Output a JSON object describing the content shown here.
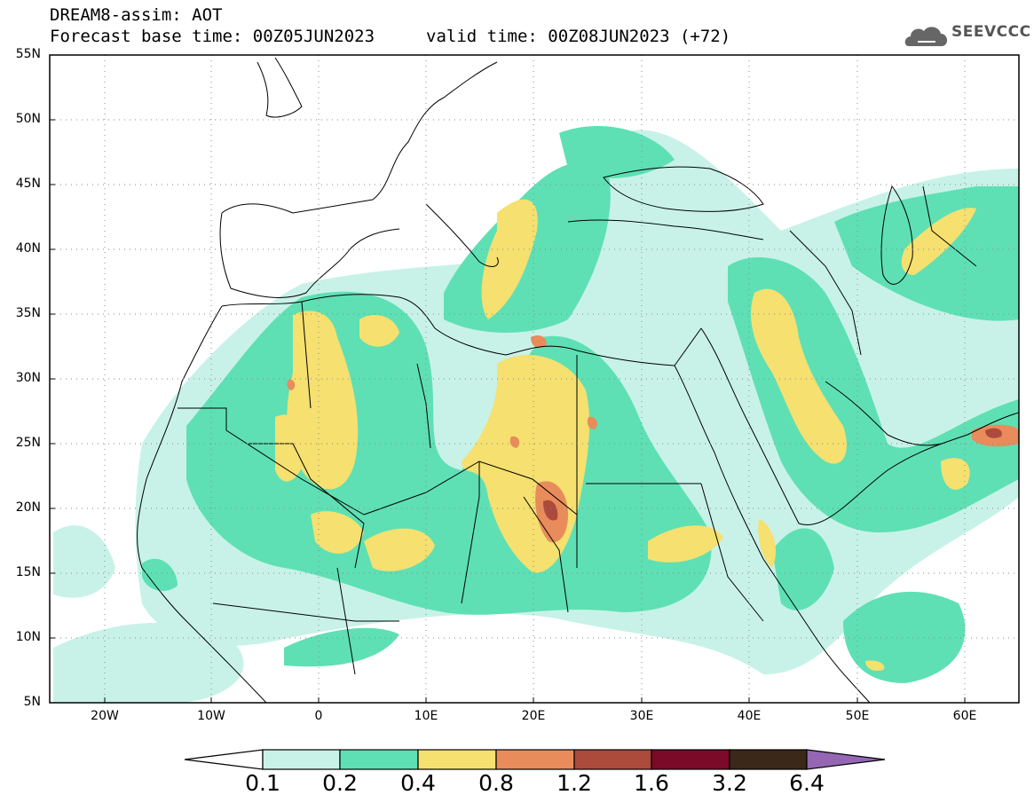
{
  "title": {
    "line1": "DREAM8-assim: AOT",
    "line2": "Forecast base time: 00Z05JUN2023",
    "valid": "valid time: 00Z08JUN2023 (+72)"
  },
  "logo": {
    "text": "SEEVCCC",
    "icon": "cloud-icon"
  },
  "axes": {
    "lat_labels": [
      "55N",
      "50N",
      "45N",
      "40N",
      "35N",
      "30N",
      "25N",
      "20N",
      "15N",
      "10N",
      "5N"
    ],
    "lon_labels": [
      "20W",
      "10W",
      "0",
      "10E",
      "20E",
      "30E",
      "40E",
      "50E",
      "60E"
    ],
    "lat_range": [
      5,
      55
    ],
    "lon_range": [
      -25,
      65
    ]
  },
  "colorbar": {
    "levels": [
      "0.1",
      "0.2",
      "0.4",
      "0.8",
      "1.2",
      "1.6",
      "3.2",
      "6.4"
    ],
    "colors": [
      "#c8f2e8",
      "#5ee0b4",
      "#f5e070",
      "#e88c5c",
      "#ac4a3c",
      "#7a0a28",
      "#3c2818",
      "#9466b4"
    ]
  }
}
